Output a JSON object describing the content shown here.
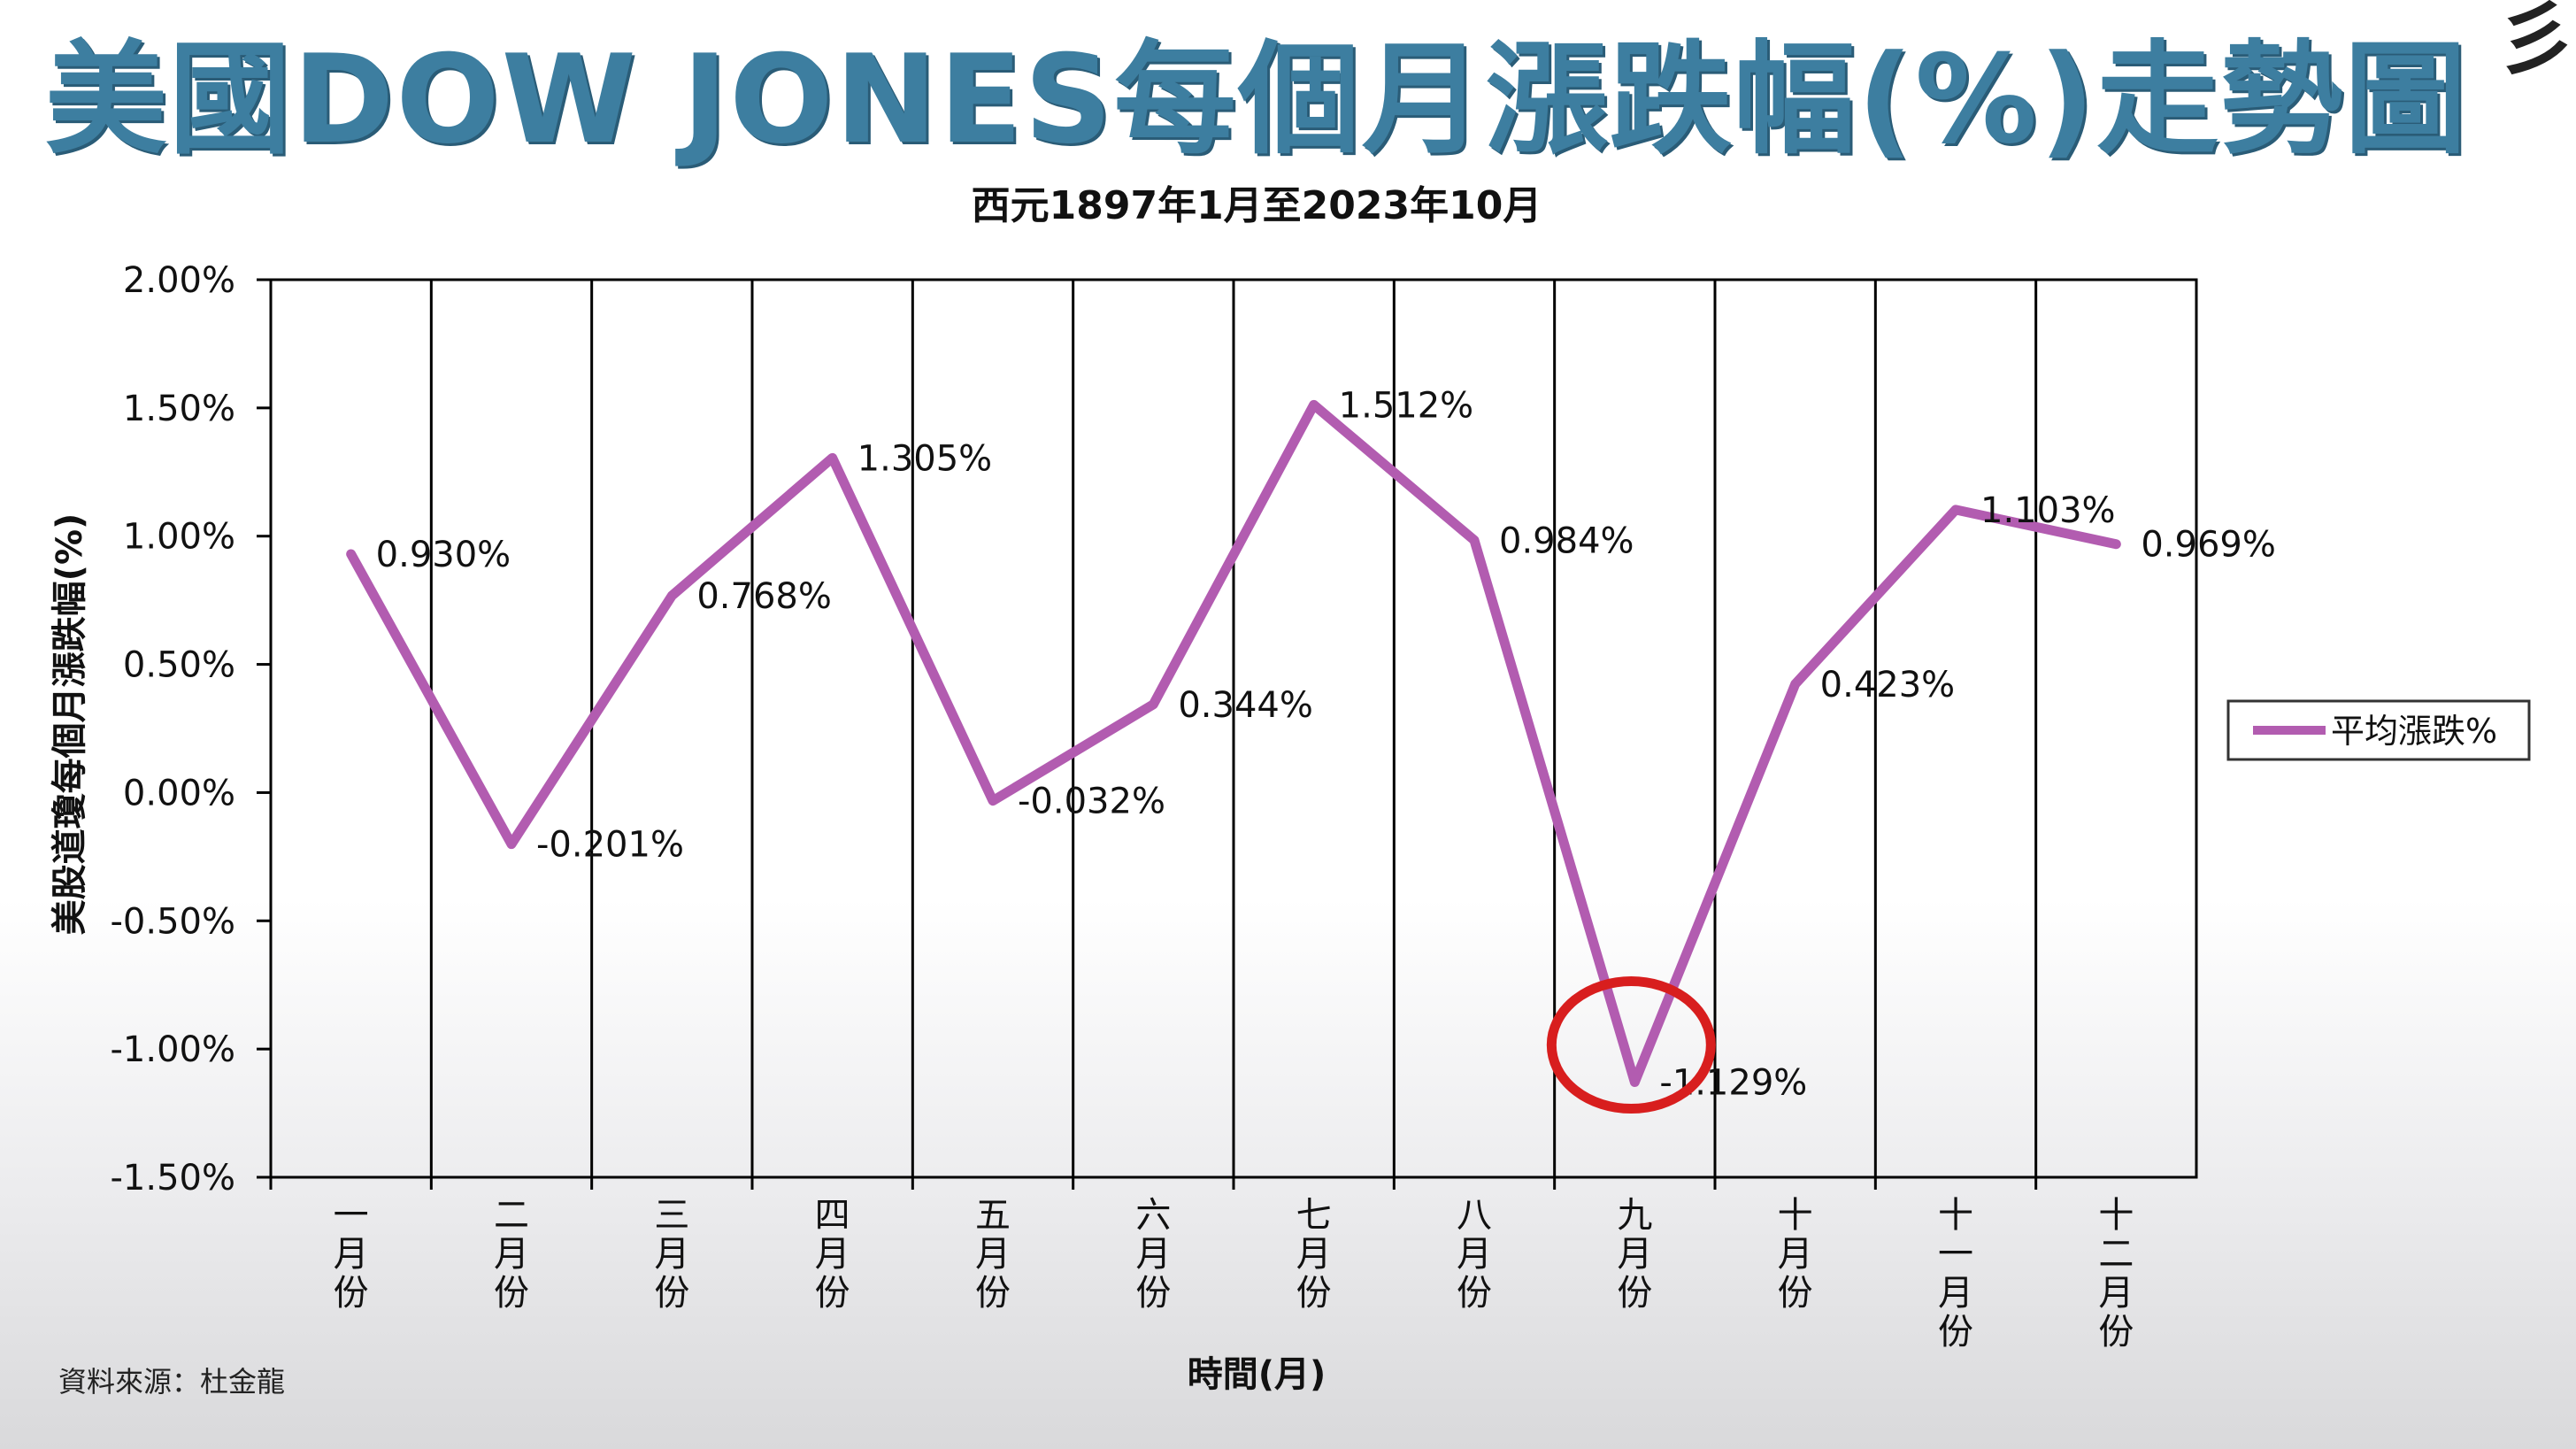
{
  "title": "美國DOW JONES每個月漲跌幅(%)走勢圖",
  "subtitle": "西元1897年1月至2023年10月",
  "corner_glyph": "彡",
  "source_note": "資料來源：杜金龍",
  "colors": {
    "title": "#3d7ea0",
    "line": "#b25cb0",
    "highlight_circle": "#d81e1e",
    "grid": "#000000"
  },
  "chart_data": {
    "type": "line",
    "categories": [
      "一月份",
      "二月份",
      "三月份",
      "四月份",
      "五月份",
      "六月份",
      "七月份",
      "八月份",
      "九月份",
      "十月份",
      "十一月份",
      "十二月份"
    ],
    "series": [
      {
        "name": "平均漲跌%",
        "values": [
          0.93,
          -0.201,
          0.768,
          1.305,
          -0.032,
          0.344,
          1.512,
          0.984,
          -1.129,
          0.423,
          1.103,
          0.969
        ],
        "labels": [
          "0.930%",
          "-0.201%",
          "0.768%",
          "1.305%",
          "-0.032%",
          "0.344%",
          "1.512%",
          "0.984%",
          "-1.129%",
          "0.423%",
          "1.103%",
          "0.969%"
        ]
      }
    ],
    "ylim": [
      -1.5,
      2.0
    ],
    "yticks": [
      2.0,
      1.5,
      1.0,
      0.5,
      0.0,
      -0.5,
      -1.0,
      -1.5
    ],
    "ytick_labels": [
      "2.00%",
      "1.50%",
      "1.00%",
      "0.50%",
      "0.00%",
      "-0.50%",
      "-1.00%",
      "-1.50%"
    ],
    "xlabel": "時間(月)",
    "ylabel": "美股道瓊每個月漲跌幅(%)",
    "grid": "vertical",
    "legend_position": "right",
    "highlight_category": "九月份"
  }
}
